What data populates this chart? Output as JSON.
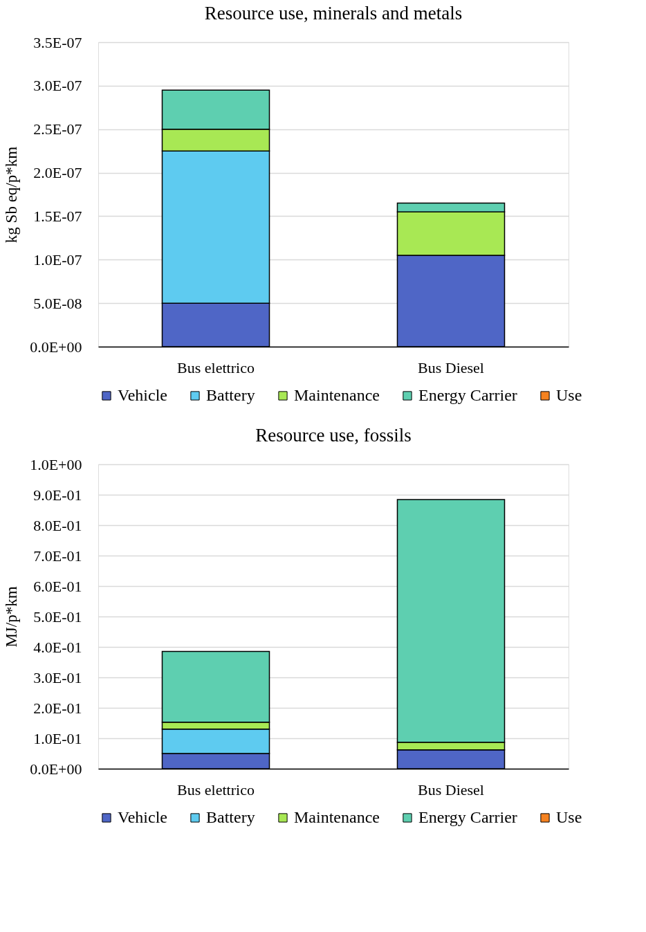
{
  "chart_data": [
    {
      "type": "bar",
      "title": "Resource use, minerals and metals",
      "ylabel": "kg Sb eq/p*km",
      "categories": [
        "Bus elettrico",
        "Bus Diesel"
      ],
      "stacked": true,
      "grid": "y",
      "legend": "bottom",
      "ylim": [
        0,
        3.5e-07
      ],
      "yticks": [
        {
          "value": 0,
          "label": "0.0E+00"
        },
        {
          "value": 5e-08,
          "label": "5.0E-08"
        },
        {
          "value": 1e-07,
          "label": "1.0E-07"
        },
        {
          "value": 1.5e-07,
          "label": "1.5E-07"
        },
        {
          "value": 2e-07,
          "label": "2.0E-07"
        },
        {
          "value": 2.5e-07,
          "label": "2.5E-07"
        },
        {
          "value": 3e-07,
          "label": "3.0E-07"
        },
        {
          "value": 3.5e-07,
          "label": "3.5E-07"
        }
      ],
      "series": [
        {
          "name": "Vehicle",
          "color": "#4f66c6",
          "values": [
            5e-08,
            1.05e-07
          ]
        },
        {
          "name": "Battery",
          "color": "#5ecbf0",
          "values": [
            1.75e-07,
            0
          ]
        },
        {
          "name": "Maintenance",
          "color": "#a8e854",
          "values": [
            2.5e-08,
            5e-08
          ]
        },
        {
          "name": "Energy Carrier",
          "color": "#5ecfb0",
          "values": [
            4.5e-08,
            1e-08
          ]
        },
        {
          "name": "Use",
          "color": "#f58220",
          "values": [
            0,
            0
          ]
        }
      ]
    },
    {
      "type": "bar",
      "title": "Resource use, fossils",
      "ylabel": "MJ/p*km",
      "categories": [
        "Bus elettrico",
        "Bus Diesel"
      ],
      "stacked": true,
      "grid": "y",
      "legend": "bottom",
      "ylim": [
        0,
        1.0
      ],
      "yticks": [
        {
          "value": 0,
          "label": "0.0E+00"
        },
        {
          "value": 0.1,
          "label": "1.0E-01"
        },
        {
          "value": 0.2,
          "label": "2.0E-01"
        },
        {
          "value": 0.3,
          "label": "3.0E-01"
        },
        {
          "value": 0.4,
          "label": "4.0E-01"
        },
        {
          "value": 0.5,
          "label": "5.0E-01"
        },
        {
          "value": 0.6,
          "label": "6.0E-01"
        },
        {
          "value": 0.7,
          "label": "7.0E-01"
        },
        {
          "value": 0.8,
          "label": "8.0E-01"
        },
        {
          "value": 0.9,
          "label": "9.0E-01"
        },
        {
          "value": 1.0,
          "label": "1.0E+00"
        }
      ],
      "series": [
        {
          "name": "Vehicle",
          "color": "#4f66c6",
          "values": [
            0.05,
            0.062
          ]
        },
        {
          "name": "Battery",
          "color": "#5ecbf0",
          "values": [
            0.08,
            0
          ]
        },
        {
          "name": "Maintenance",
          "color": "#a8e854",
          "values": [
            0.023,
            0.025
          ]
        },
        {
          "name": "Energy Carrier",
          "color": "#5ecfb0",
          "values": [
            0.232,
            0.797
          ]
        },
        {
          "name": "Use",
          "color": "#f58220",
          "values": [
            0,
            0
          ]
        }
      ]
    }
  ]
}
